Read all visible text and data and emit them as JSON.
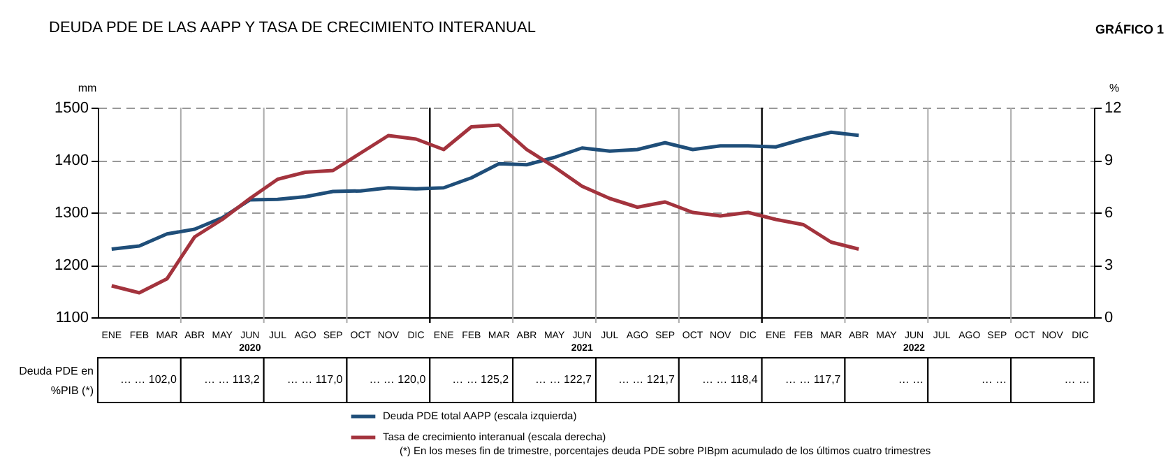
{
  "chart_data": {
    "type": "line",
    "title": "DEUDA PDE DE LAS AAPP Y TASA DE CRECIMIENTO INTERANUAL",
    "categories": [
      "ENE",
      "FEB",
      "MAR",
      "ABR",
      "MAY",
      "JUN",
      "JUL",
      "AGO",
      "SEP",
      "OCT",
      "NOV",
      "DIC",
      "ENE",
      "FEB",
      "MAR",
      "ABR",
      "MAY",
      "JUN",
      "JUL",
      "AGO",
      "SEP",
      "OCT",
      "NOV",
      "DIC",
      "ENE",
      "FEB",
      "MAR",
      "ABR",
      "MAY",
      "JUN",
      "JUL",
      "AGO",
      "SEP",
      "OCT",
      "NOV",
      "DIC"
    ],
    "series": [
      {
        "name": "Deuda PDE total AAPP (escala izquierda)",
        "color": "#1f4e79",
        "values": [
          1230,
          1236,
          1259,
          1268,
          1290,
          1324,
          1325,
          1330,
          1340,
          1341,
          1347,
          1345,
          1347,
          1366,
          1393,
          1391,
          1405,
          1423,
          1417,
          1420,
          1433,
          1420,
          1427,
          1427,
          1425,
          1440,
          1453,
          1447,
          null,
          null,
          null,
          null,
          null,
          null,
          null,
          null
        ]
      },
      {
        "name": "Tasa de crecimiento interanual (escala derecha)",
        "color": "#a3333d",
        "axis": "y2",
        "values": [
          1.8,
          1.4,
          2.2,
          4.6,
          5.6,
          6.8,
          7.9,
          8.3,
          8.4,
          9.4,
          10.4,
          10.2,
          9.6,
          10.9,
          11.0,
          9.6,
          8.6,
          7.5,
          6.8,
          6.3,
          6.6,
          6.0,
          5.8,
          6.0,
          5.6,
          5.3,
          4.3,
          3.9,
          null,
          null,
          null,
          null,
          null,
          null,
          null,
          null
        ]
      }
    ],
    "ylabel": "mm",
    "y2label": "%",
    "ylim": [
      1100,
      1500
    ],
    "yticks": [
      1100,
      1200,
      1300,
      1400,
      1500
    ],
    "y2lim": [
      0,
      12
    ],
    "y2ticks": [
      0,
      3,
      6,
      9,
      12
    ],
    "grid": true,
    "legend": "bottom",
    "annotations": [
      "GRÁFICO 1",
      "2020",
      "2021",
      "2022",
      "Deuda PDE en %PIB (*)",
      "… …  102,0",
      "… …  113,2",
      "… …  117,0",
      "… …  120,0",
      "… …  125,2",
      "… …  122,7",
      "… …  121,7",
      "… …  118,4",
      "… …  117,7",
      "… …",
      "… …",
      "… …",
      "(*) En los meses fin de trimestre, porcentajes deuda PDE sobre PIBpm acumulado de los últimos cuatro trimestres"
    ]
  }
}
